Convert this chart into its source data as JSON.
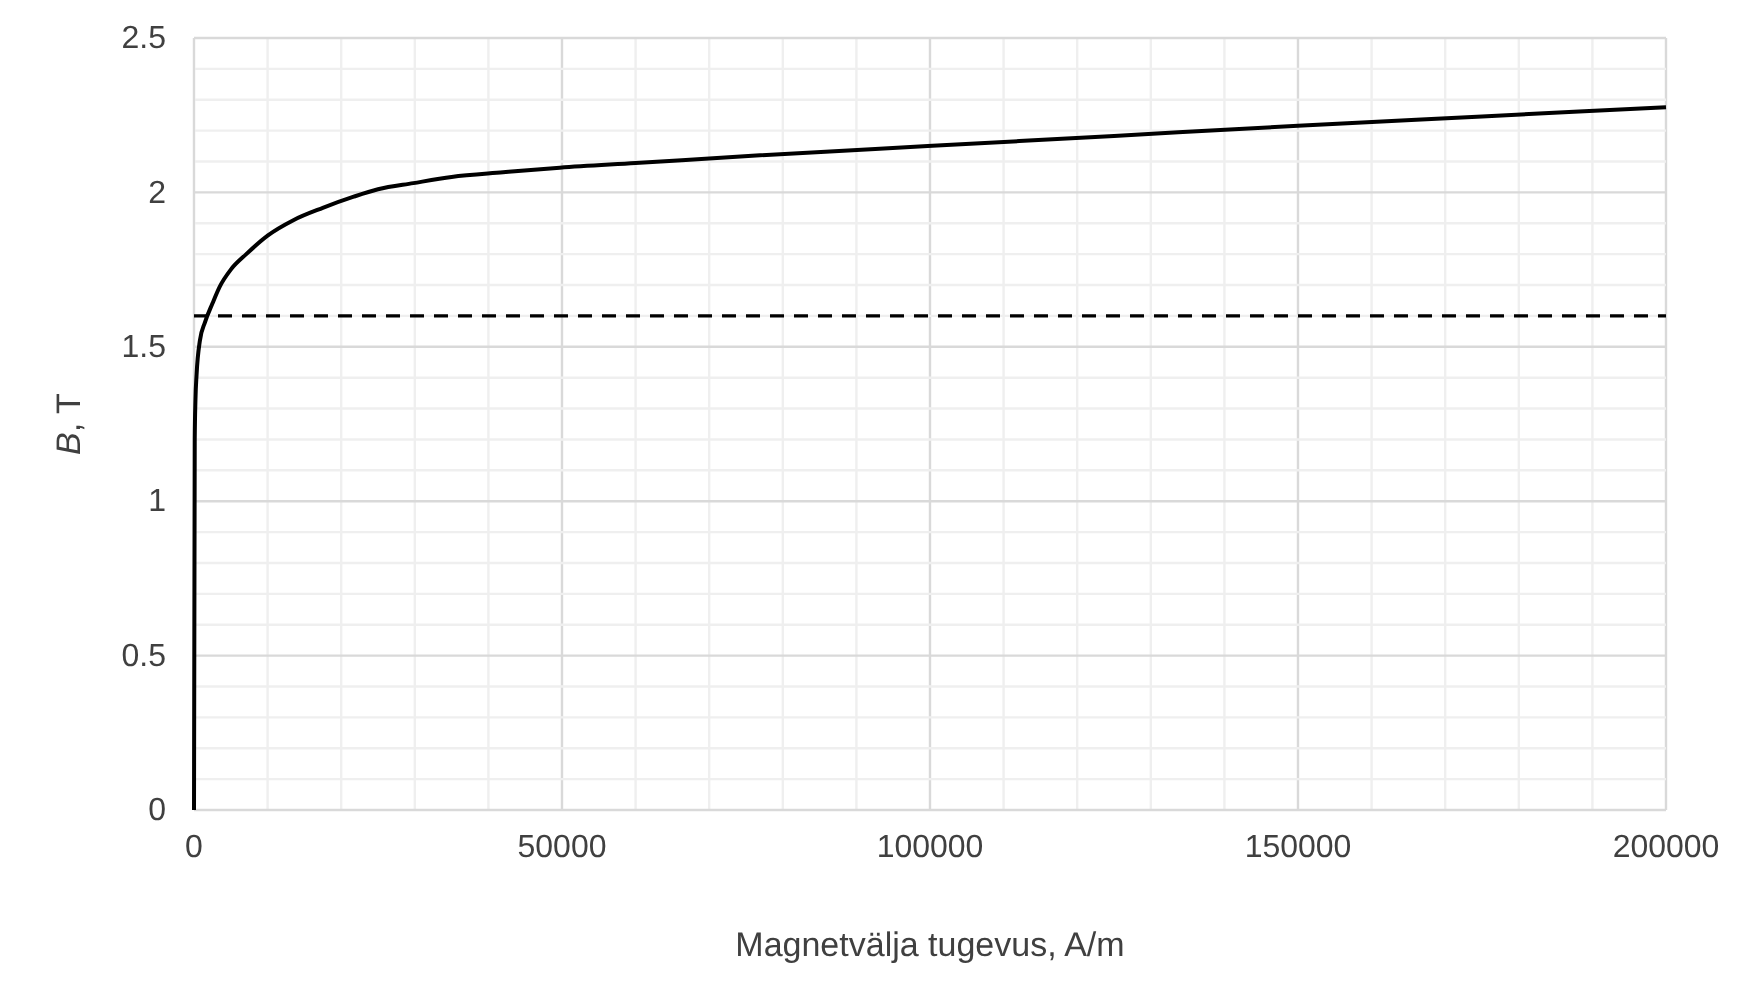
{
  "chart_data": {
    "type": "line",
    "xlabel": "Magnetvälja tugevus, A/m",
    "ylabel": "B, T",
    "xlim": [
      0,
      200000
    ],
    "ylim": [
      0,
      2.5
    ],
    "xticks": [
      0,
      50000,
      100000,
      150000,
      200000
    ],
    "yticks": [
      0,
      0.5,
      1,
      1.5,
      2,
      2.5
    ],
    "grid": true,
    "marker": "none",
    "line_style": "solid",
    "series": [
      {
        "color": "#000000",
        "x": [
          0,
          100,
          200,
          350,
          800,
          1500,
          2500,
          3500,
          5000,
          7100,
          10000,
          13500,
          17500,
          21700,
          25000,
          29800,
          35000,
          42000,
          49700,
          60000,
          76900,
          99700,
          125000,
          150000,
          175000,
          200000
        ],
        "values": [
          0,
          1.2,
          1.33,
          1.41,
          1.52,
          1.58,
          1.64,
          1.695,
          1.75,
          1.8,
          1.86,
          1.91,
          1.95,
          1.986,
          2.01,
          2.03,
          2.05,
          2.065,
          2.08,
          2.095,
          2.12,
          2.15,
          2.183,
          2.216,
          2.246,
          2.276
        ]
      }
    ],
    "ref_lines": [
      {
        "axis": "y",
        "value": 1.6,
        "color": "#000000",
        "line_style": "dashed"
      }
    ]
  }
}
